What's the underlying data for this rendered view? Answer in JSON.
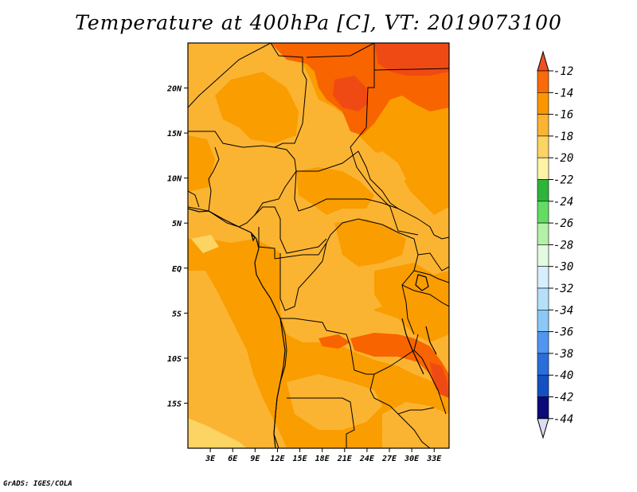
{
  "title": "Temperature at 400hPa [C], VT: 2019073100",
  "footer": "GrADS: IGES/COLA",
  "map": {
    "lon_range": [
      0,
      35
    ],
    "lat_range": [
      -20,
      25
    ],
    "lon_ticks": [
      "3E",
      "6E",
      "9E",
      "12E",
      "15E",
      "18E",
      "21E",
      "24E",
      "27E",
      "30E",
      "33E"
    ],
    "lat_ticks": [
      "20N",
      "15N",
      "10N",
      "5N",
      "EQ",
      "5S",
      "10S",
      "15S"
    ]
  },
  "colorbar": {
    "labels": [
      "-12",
      "-14",
      "-16",
      "-18",
      "-20",
      "-22",
      "-24",
      "-26",
      "-28",
      "-30",
      "-32",
      "-34",
      "-36",
      "-38",
      "-40",
      "-42",
      "-44"
    ],
    "top_arrow_color": "#f05020",
    "bottom_arrow_color": "#dcdcf5",
    "colors": [
      "#fa6a0a",
      "#fa9700",
      "#fbb432",
      "#fcd463",
      "#fef3a7",
      "#2db43c",
      "#64dc64",
      "#b4f0a8",
      "#e2fae0",
      "#d6eefe",
      "#b4e0fa",
      "#8cc8f5",
      "#5096f0",
      "#2a6edc",
      "#1450c3",
      "#0a0a78"
    ]
  },
  "field_colors": {
    "c14": "#fa9d00",
    "c16": "#fbb432",
    "c18": "#fcd463",
    "c12": "#f86400",
    "c10": "#f04a14"
  }
}
